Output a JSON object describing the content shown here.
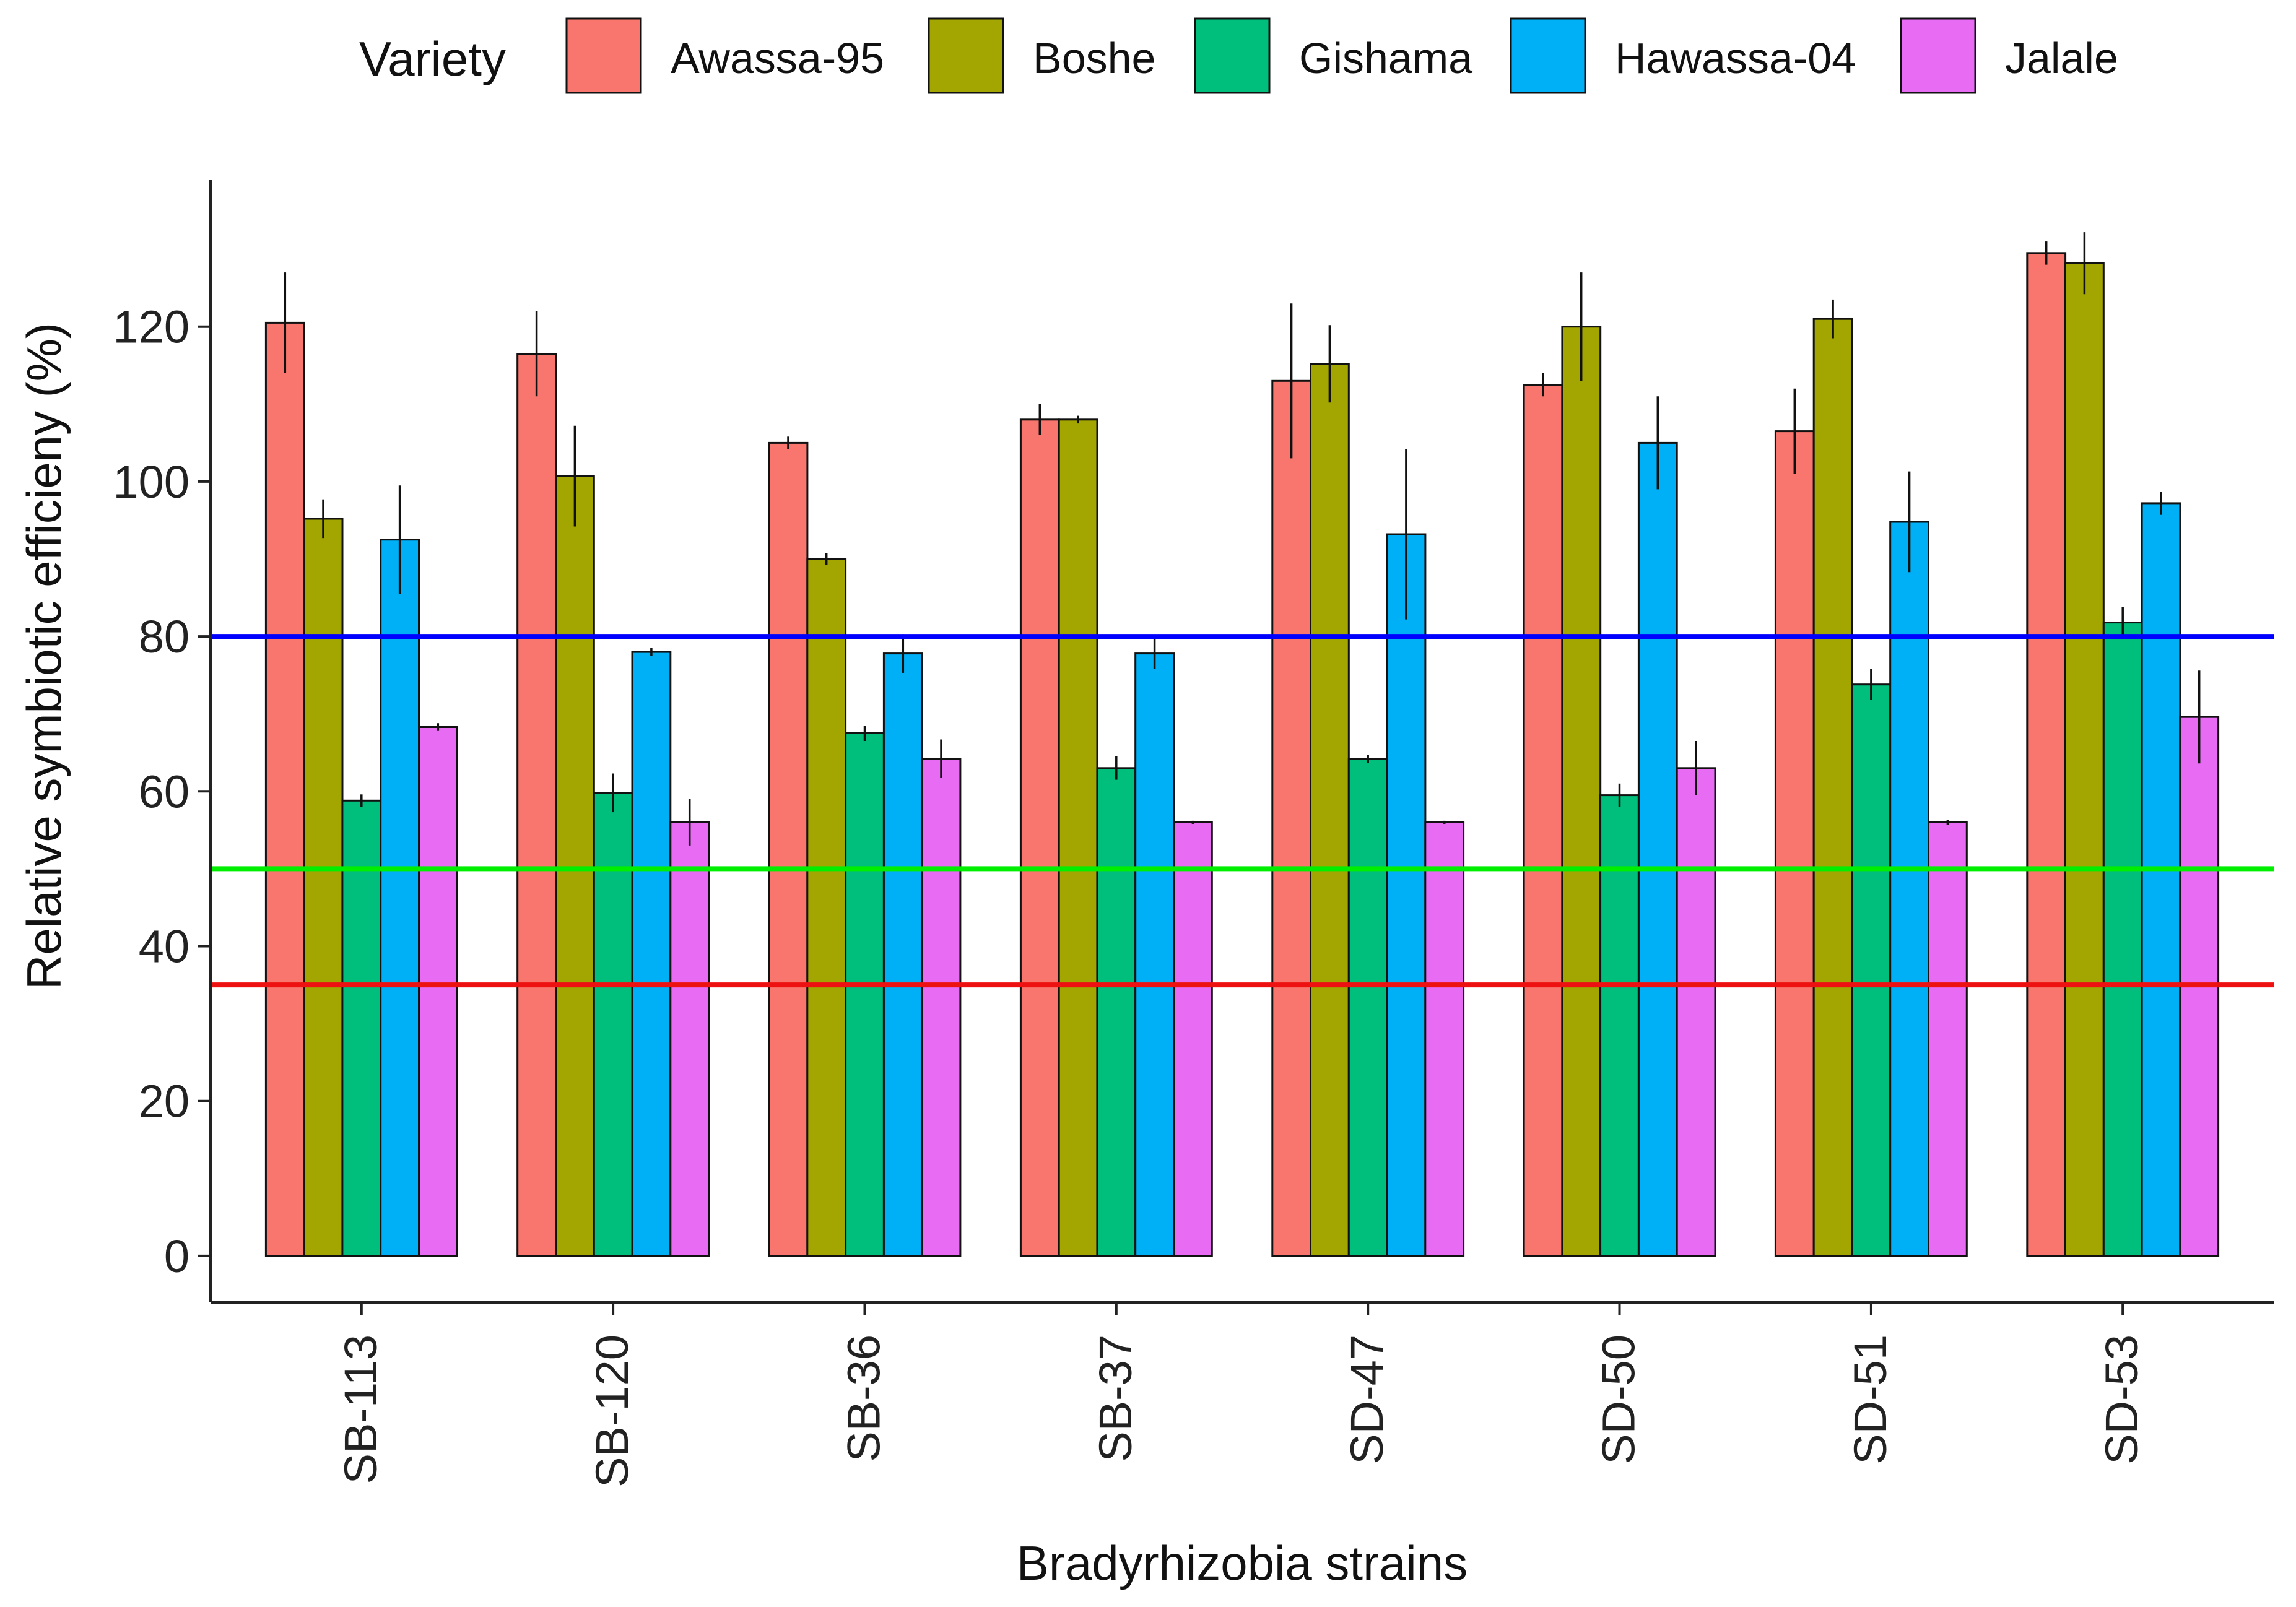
{
  "chart_data": {
    "type": "bar",
    "title": "",
    "xlabel": "Bradyrhizobia strains",
    "ylabel": "Relative symbiotic efficieny (%)",
    "ylim": [
      -6,
      139
    ],
    "yticks": [
      0,
      20,
      40,
      60,
      80,
      100,
      120
    ],
    "legend": {
      "title": "Variety",
      "position": "top"
    },
    "categories": [
      "SB-113",
      "SB-120",
      "SB-36",
      "SB-37",
      "SD-47",
      "SD-50",
      "SD-51",
      "SD-53"
    ],
    "series": [
      {
        "name": "Awassa-95",
        "color": "#F8766D",
        "values": [
          120.5,
          116.5,
          105,
          108,
          113,
          112.5,
          106.5,
          129.5
        ],
        "errors": [
          6.5,
          5.5,
          0.8,
          2,
          10,
          1.5,
          5.5,
          1.5
        ]
      },
      {
        "name": "Boshe",
        "color": "#A3A500",
        "values": [
          95.2,
          100.7,
          90,
          108,
          115.2,
          120,
          121,
          128.2
        ],
        "errors": [
          2.5,
          6.5,
          0.8,
          0.5,
          5,
          7,
          2.5,
          4
        ]
      },
      {
        "name": "Gishama",
        "color": "#00BF7D",
        "values": [
          58.8,
          59.8,
          67.5,
          63,
          64.2,
          59.5,
          73.8,
          81.8
        ],
        "errors": [
          0.8,
          2.5,
          1,
          1.5,
          0.5,
          1.5,
          2,
          2
        ]
      },
      {
        "name": "Hawassa-04",
        "color": "#00B0F6",
        "values": [
          92.5,
          78,
          77.8,
          77.8,
          93.2,
          105,
          94.8,
          97.2
        ],
        "errors": [
          7,
          0.5,
          2.5,
          2,
          11,
          6,
          6.5,
          1.5
        ]
      },
      {
        "name": "Jalale",
        "color": "#E76BF3",
        "values": [
          68.3,
          56,
          64.2,
          56,
          56,
          63,
          56,
          69.6
        ],
        "errors": [
          0.5,
          3,
          2.5,
          0.2,
          0.2,
          3.5,
          0.3,
          6
        ]
      }
    ],
    "reference_lines": [
      {
        "value": 80,
        "color": "#0000FF"
      },
      {
        "value": 50,
        "color": "#00EE00"
      },
      {
        "value": 35,
        "color": "#EE1111"
      }
    ]
  }
}
